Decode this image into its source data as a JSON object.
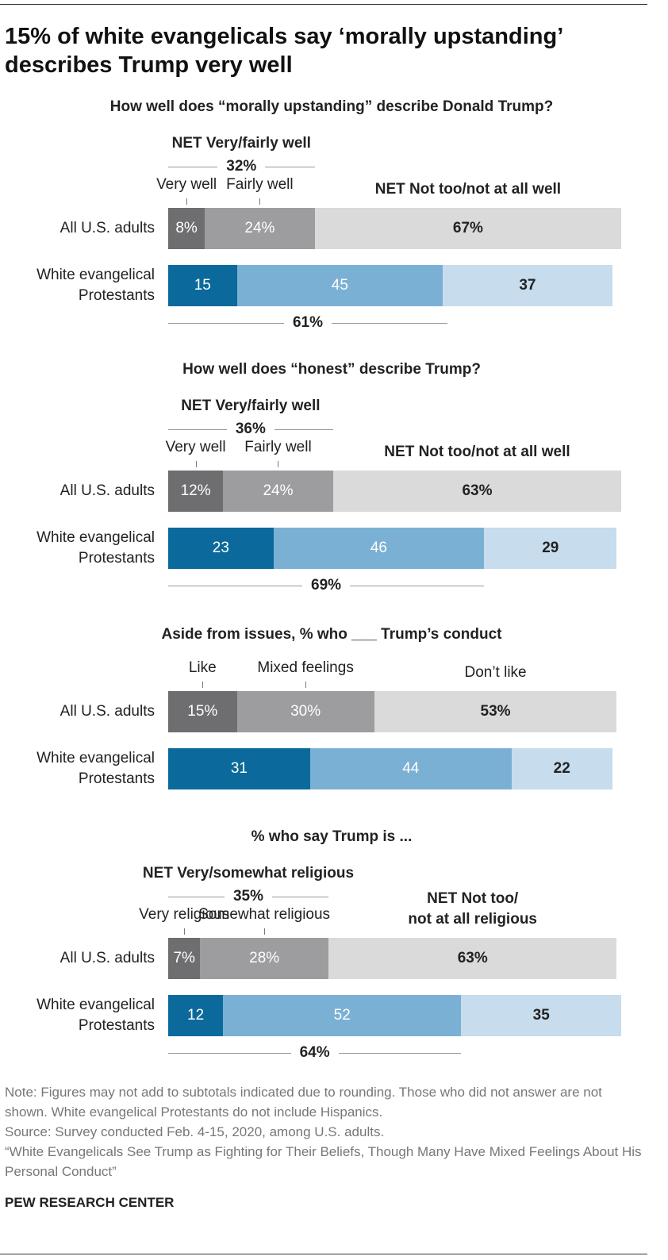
{
  "title": "15% of white evangelicals say ‘morally upstanding’ describes Trump very well",
  "chart_data": [
    {
      "type": "bar",
      "stacked": true,
      "orientation": "horizontal",
      "title": "How well does “morally upstanding” describe Donald Trump?",
      "categories": [
        "All U.S. adults",
        "White evangelical\nProtestants"
      ],
      "xlim": [
        0,
        100
      ],
      "series": [
        {
          "name": "Very well",
          "colors": [
            "#6e6e70",
            "#0b6a9b"
          ],
          "values": [
            8,
            15
          ],
          "value_labels": [
            "8%",
            "15"
          ]
        },
        {
          "name": "Fairly well",
          "colors": [
            "#9d9d9f",
            "#7bb0d5"
          ],
          "values": [
            24,
            45
          ],
          "value_labels": [
            "24%",
            "45"
          ]
        },
        {
          "name": "NET Not too/not at all well",
          "colors": [
            "#dadadb",
            "#c7dcec"
          ],
          "values": [
            67,
            37
          ],
          "value_labels": [
            "67%",
            "37"
          ]
        }
      ],
      "net_top": {
        "label": "NET Very/fairly well",
        "value": 32,
        "value_label": "32%"
      },
      "net_bottom": {
        "value": 61,
        "value_label": "61%"
      }
    },
    {
      "type": "bar",
      "stacked": true,
      "orientation": "horizontal",
      "title": "How well does “honest” describe Trump?",
      "categories": [
        "All U.S. adults",
        "White evangelical\nProtestants"
      ],
      "xlim": [
        0,
        100
      ],
      "series": [
        {
          "name": "Very well",
          "colors": [
            "#6e6e70",
            "#0b6a9b"
          ],
          "values": [
            12,
            23
          ],
          "value_labels": [
            "12%",
            "23"
          ]
        },
        {
          "name": "Fairly well",
          "colors": [
            "#9d9d9f",
            "#7bb0d5"
          ],
          "values": [
            24,
            46
          ],
          "value_labels": [
            "24%",
            "46"
          ]
        },
        {
          "name": "NET Not too/not at all well",
          "colors": [
            "#dadadb",
            "#c7dcec"
          ],
          "values": [
            63,
            29
          ],
          "value_labels": [
            "63%",
            "29"
          ]
        }
      ],
      "net_top": {
        "label": "NET Very/fairly well",
        "value": 36,
        "value_label": "36%"
      },
      "net_bottom": {
        "value": 69,
        "value_label": "69%"
      }
    },
    {
      "type": "bar",
      "stacked": true,
      "orientation": "horizontal",
      "title": "Aside from issues, % who ___ Trump’s conduct",
      "categories": [
        "All U.S. adults",
        "White evangelical\nProtestants"
      ],
      "xlim": [
        0,
        100
      ],
      "series": [
        {
          "name": "Like",
          "colors": [
            "#6e6e70",
            "#0b6a9b"
          ],
          "values": [
            15,
            31
          ],
          "value_labels": [
            "15%",
            "31"
          ]
        },
        {
          "name": "Mixed feelings",
          "colors": [
            "#9d9d9f",
            "#7bb0d5"
          ],
          "values": [
            30,
            44
          ],
          "value_labels": [
            "30%",
            "44"
          ]
        },
        {
          "name": "Don’t like",
          "colors": [
            "#dadadb",
            "#c7dcec"
          ],
          "values": [
            53,
            22
          ],
          "value_labels": [
            "53%",
            "22"
          ]
        }
      ]
    },
    {
      "type": "bar",
      "stacked": true,
      "orientation": "horizontal",
      "title": "% who say Trump is ...",
      "categories": [
        "All U.S. adults",
        "White evangelical\nProtestants"
      ],
      "xlim": [
        0,
        100
      ],
      "series": [
        {
          "name": "Very religious",
          "colors": [
            "#6e6e70",
            "#0b6a9b"
          ],
          "values": [
            7,
            12
          ],
          "value_labels": [
            "7%",
            "12"
          ]
        },
        {
          "name": "Somewhat religious",
          "colors": [
            "#9d9d9f",
            "#7bb0d5"
          ],
          "values": [
            28,
            52
          ],
          "value_labels": [
            "28%",
            "52"
          ]
        },
        {
          "name": "NET Not too/\nnot at all religious",
          "colors": [
            "#dadadb",
            "#c7dcec"
          ],
          "values": [
            63,
            35
          ],
          "value_labels": [
            "63%",
            "35"
          ]
        }
      ],
      "net_top": {
        "label": "NET Very/somewhat religious",
        "value": 35,
        "value_label": "35%"
      },
      "net_bottom": {
        "value": 64,
        "value_label": "64%"
      }
    }
  ],
  "note": "Note: Figures may not add to subtotals indicated due to rounding. Those who did not answer are not shown. White evangelical Protestants do not include Hispanics.",
  "source": "Source: Survey conducted Feb. 4-15, 2020, among U.S. adults.",
  "report": "“White Evangelicals See Trump as Fighting for Their Beliefs, Though Many Have Mixed Feelings About His Personal Conduct”",
  "footer": "PEW RESEARCH CENTER"
}
